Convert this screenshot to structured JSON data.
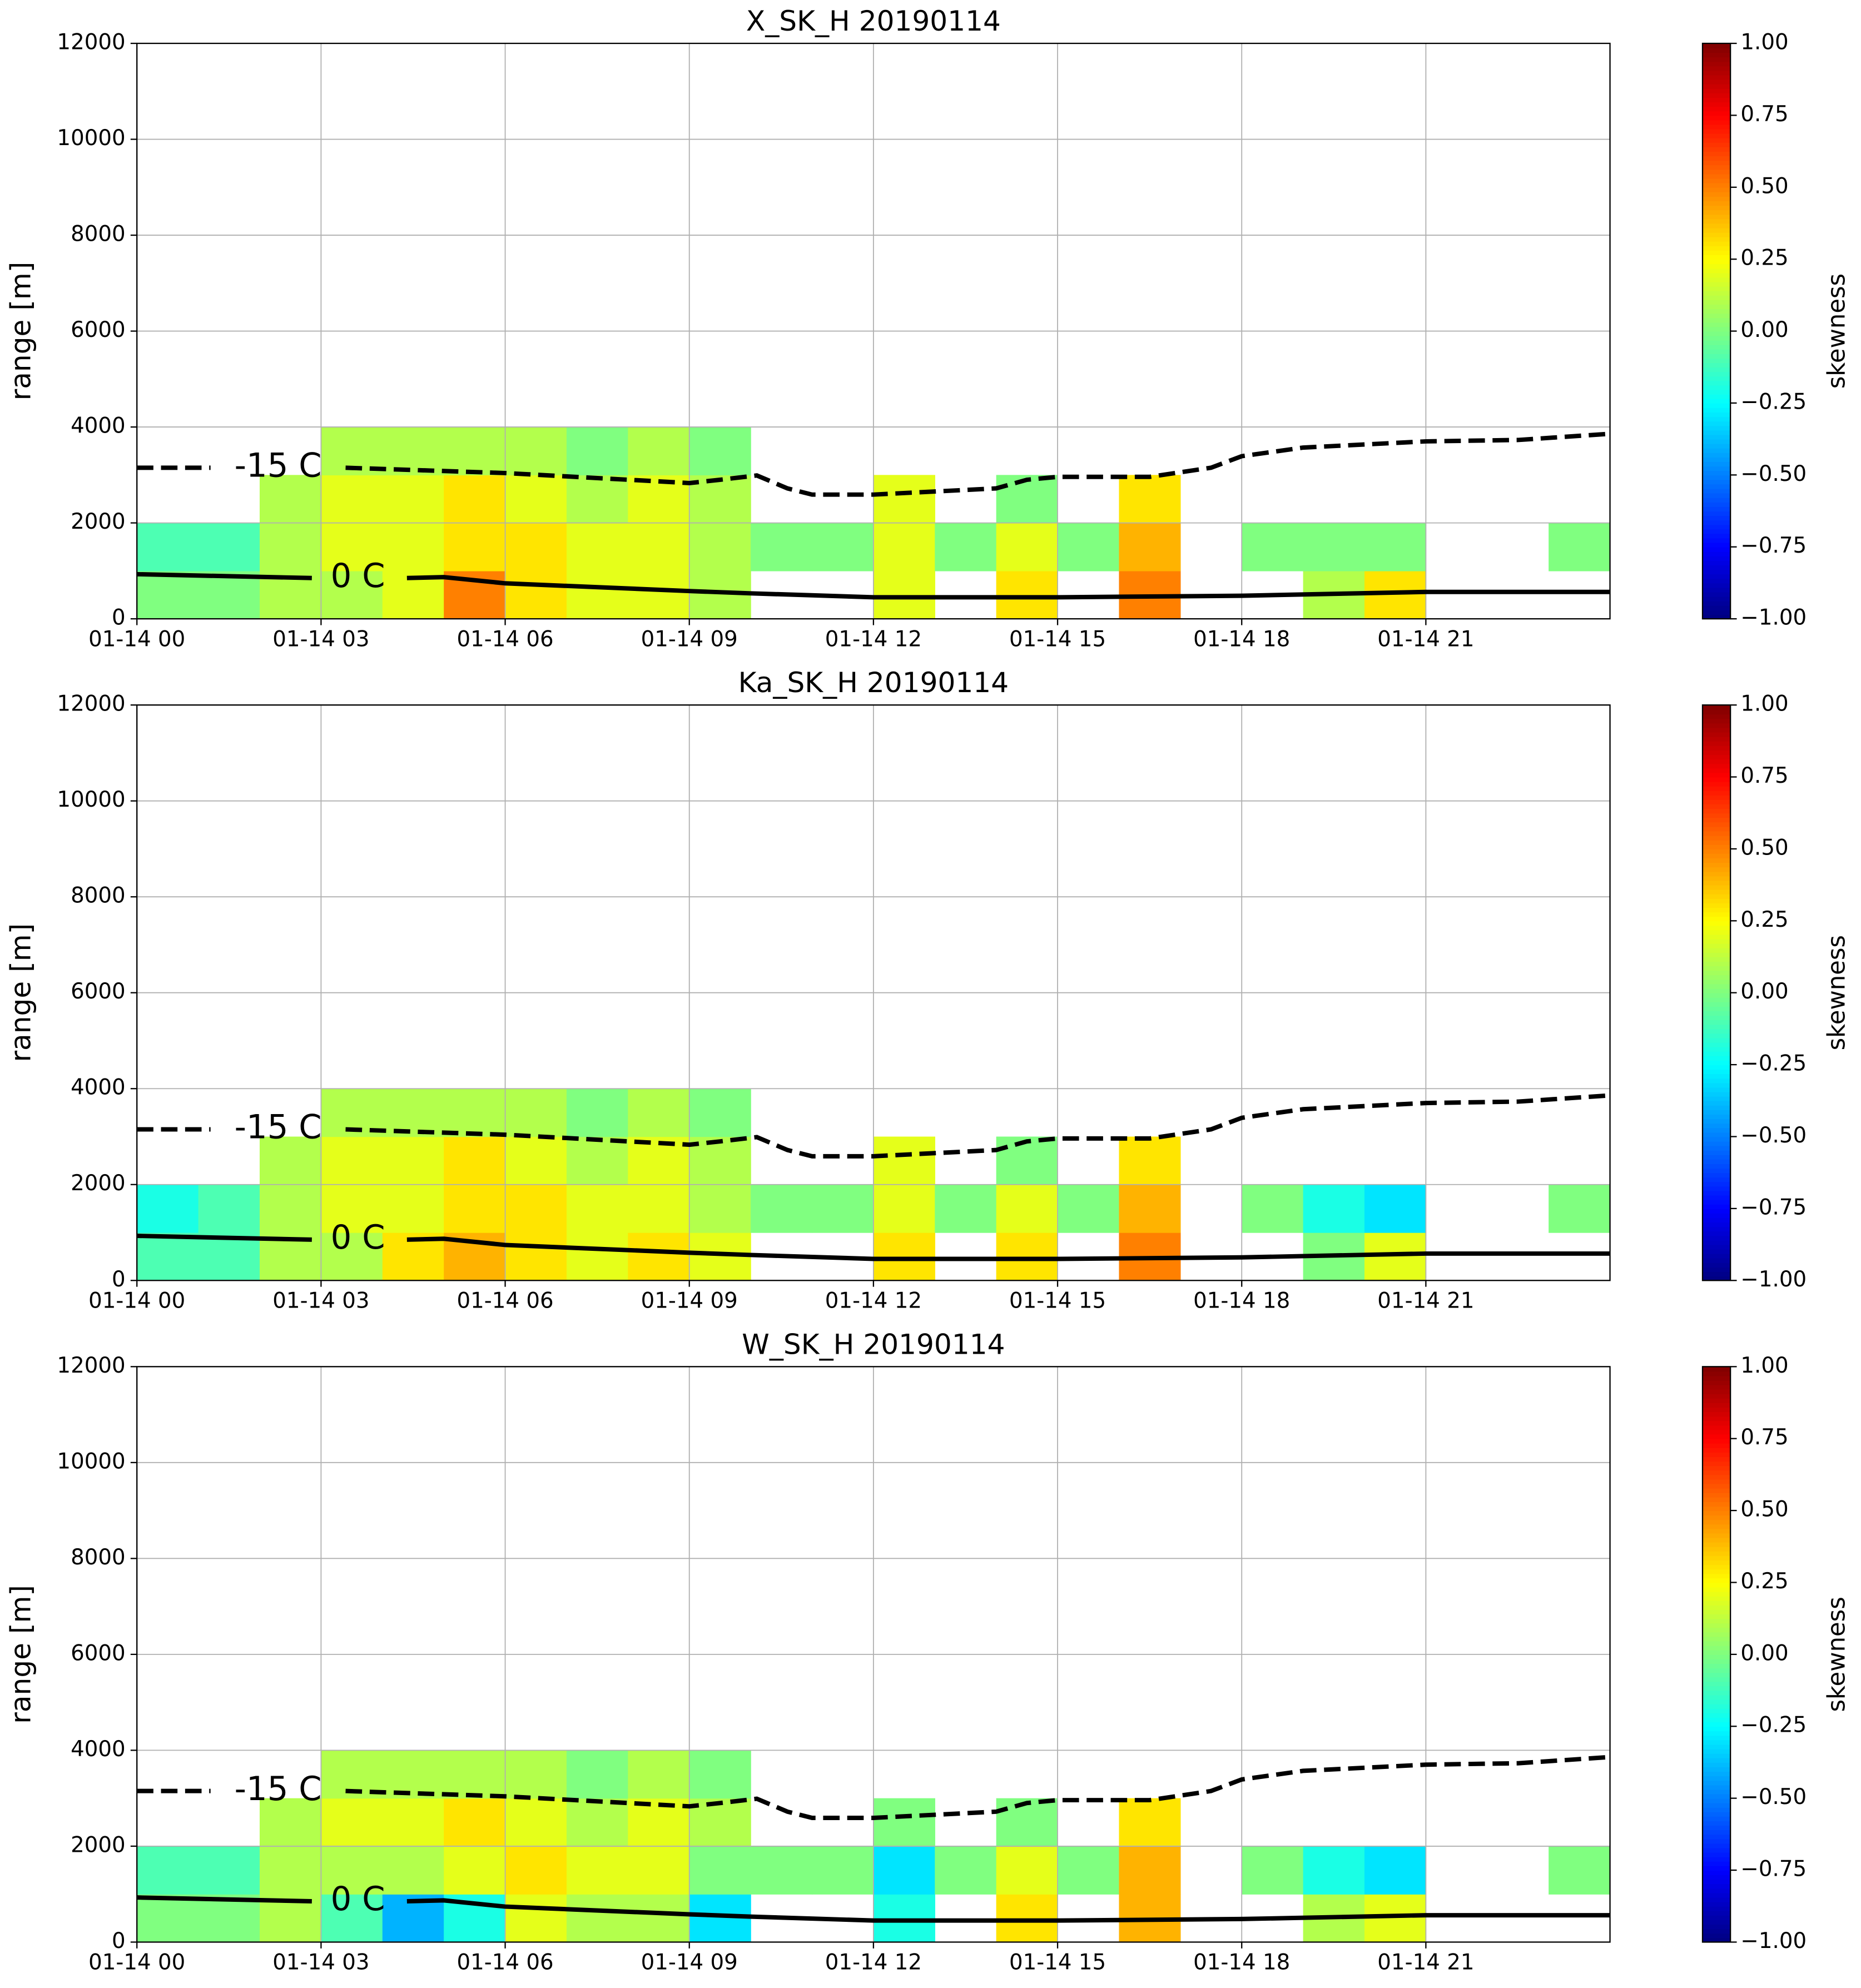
{
  "chart_data": [
    {
      "type": "heatmap",
      "title": "X_SK_H 20190114",
      "ylabel": "range [m]",
      "colorbar_label": "skewness",
      "colormap": "jet",
      "grid": true,
      "xlim": [
        0,
        24
      ],
      "xticks": [
        {
          "value": 0,
          "label": "01-14 00"
        },
        {
          "value": 3,
          "label": "01-14 03"
        },
        {
          "value": 6,
          "label": "01-14 06"
        },
        {
          "value": 9,
          "label": "01-14 09"
        },
        {
          "value": 12,
          "label": "01-14 12"
        },
        {
          "value": 15,
          "label": "01-14 15"
        },
        {
          "value": 18,
          "label": "01-14 18"
        },
        {
          "value": 21,
          "label": "01-14 21"
        }
      ],
      "ylim": [
        0,
        12000
      ],
      "yticks": [
        0,
        2000,
        4000,
        6000,
        8000,
        10000,
        12000
      ],
      "zlim": [
        -1,
        1
      ],
      "zticks": [
        {
          "value": -1,
          "label": "−1.00"
        },
        {
          "value": -0.75,
          "label": "−0.75"
        },
        {
          "value": -0.5,
          "label": "−0.50"
        },
        {
          "value": -0.25,
          "label": "−0.25"
        },
        {
          "value": 0,
          "label": "0.00"
        },
        {
          "value": 0.25,
          "label": "0.25"
        },
        {
          "value": 0.5,
          "label": "0.50"
        },
        {
          "value": 0.75,
          "label": "0.75"
        },
        {
          "value": 1,
          "label": "1.00"
        }
      ],
      "x_bins": [
        0,
        1,
        2,
        3,
        4,
        5,
        6,
        7,
        8,
        9,
        10,
        11,
        12,
        13,
        14,
        15,
        16,
        17,
        18,
        19,
        20,
        21,
        22,
        23,
        24
      ],
      "y_bins": [
        0,
        1000,
        2000,
        3000,
        4000
      ],
      "z": [
        [
          0.0,
          0.0,
          0.1,
          0.1,
          0.2,
          0.5,
          0.3,
          0.2,
          0.2,
          0.1,
          null,
          null,
          0.2,
          null,
          0.3,
          null,
          0.5,
          null,
          null,
          0.1,
          0.3,
          null,
          null,
          null
        ],
        [
          -0.1,
          -0.1,
          0.1,
          0.2,
          0.2,
          0.3,
          0.3,
          0.2,
          0.2,
          0.1,
          0.0,
          0.0,
          0.2,
          0.0,
          0.2,
          0.0,
          0.4,
          null,
          0.0,
          0.0,
          0.0,
          null,
          null,
          0.0
        ],
        [
          null,
          null,
          0.1,
          0.2,
          0.2,
          0.3,
          0.2,
          0.1,
          0.2,
          0.1,
          null,
          null,
          0.2,
          null,
          0.0,
          null,
          0.3,
          null,
          null,
          null,
          null,
          null,
          null,
          null
        ],
        [
          null,
          null,
          null,
          0.1,
          0.1,
          0.1,
          0.1,
          0.0,
          0.1,
          0.0,
          null,
          null,
          null,
          null,
          null,
          null,
          null,
          null,
          null,
          null,
          null,
          null,
          null,
          null
        ]
      ],
      "series": [
        {
          "name": "-15 C",
          "color": "#000000",
          "linestyle": "dashed",
          "x": [
            0,
            1.2,
            2.3,
            3.4,
            6,
            9,
            9.5,
            10.1,
            10.6,
            11,
            12,
            14,
            14.5,
            15,
            16.5,
            17.5,
            18,
            19,
            21,
            22.5,
            24
          ],
          "values": [
            3150,
            3150,
            null,
            3150,
            3040,
            2830,
            2900,
            2990,
            2720,
            2590,
            2590,
            2720,
            2900,
            2960,
            2960,
            3150,
            3390,
            3570,
            3700,
            3730,
            3860
          ]
        },
        {
          "name": "0 C",
          "color": "#000000",
          "linestyle": "solid",
          "x": [
            0,
            2.85,
            3.6,
            4.4,
            5,
            6,
            9,
            10,
            12,
            15,
            18,
            21,
            24
          ],
          "values": [
            930,
            850,
            null,
            850,
            870,
            740,
            580,
            530,
            450,
            450,
            480,
            560,
            560
          ]
        }
      ]
    },
    {
      "type": "heatmap",
      "title": "Ka_SK_H 20190114",
      "ylabel": "range [m]",
      "colorbar_label": "skewness",
      "colormap": "jet",
      "grid": true,
      "xlim": [
        0,
        24
      ],
      "xticks": [
        {
          "value": 0,
          "label": "01-14 00"
        },
        {
          "value": 3,
          "label": "01-14 03"
        },
        {
          "value": 6,
          "label": "01-14 06"
        },
        {
          "value": 9,
          "label": "01-14 09"
        },
        {
          "value": 12,
          "label": "01-14 12"
        },
        {
          "value": 15,
          "label": "01-14 15"
        },
        {
          "value": 18,
          "label": "01-14 18"
        },
        {
          "value": 21,
          "label": "01-14 21"
        }
      ],
      "ylim": [
        0,
        12000
      ],
      "yticks": [
        0,
        2000,
        4000,
        6000,
        8000,
        10000,
        12000
      ],
      "zlim": [
        -1,
        1
      ],
      "zticks": [
        {
          "value": -1,
          "label": "−1.00"
        },
        {
          "value": -0.75,
          "label": "−0.75"
        },
        {
          "value": -0.5,
          "label": "−0.50"
        },
        {
          "value": -0.25,
          "label": "−0.25"
        },
        {
          "value": 0,
          "label": "0.00"
        },
        {
          "value": 0.25,
          "label": "0.25"
        },
        {
          "value": 0.5,
          "label": "0.50"
        },
        {
          "value": 0.75,
          "label": "0.75"
        },
        {
          "value": 1,
          "label": "1.00"
        }
      ],
      "x_bins": [
        0,
        1,
        2,
        3,
        4,
        5,
        6,
        7,
        8,
        9,
        10,
        11,
        12,
        13,
        14,
        15,
        16,
        17,
        18,
        19,
        20,
        21,
        22,
        23,
        24
      ],
      "y_bins": [
        0,
        1000,
        2000,
        3000,
        4000
      ],
      "z": [
        [
          -0.1,
          -0.1,
          0.1,
          0.1,
          0.3,
          0.4,
          0.3,
          0.2,
          0.3,
          0.2,
          null,
          null,
          0.3,
          null,
          0.3,
          null,
          0.5,
          null,
          null,
          0.0,
          0.2,
          null,
          null,
          null
        ],
        [
          -0.2,
          -0.1,
          0.1,
          0.2,
          0.2,
          0.3,
          0.3,
          0.2,
          0.2,
          0.1,
          0.0,
          0.0,
          0.2,
          0.0,
          0.2,
          0.0,
          0.4,
          null,
          0.0,
          -0.2,
          -0.3,
          null,
          null,
          0.0
        ],
        [
          null,
          null,
          0.1,
          0.2,
          0.2,
          0.3,
          0.2,
          0.1,
          0.2,
          0.1,
          null,
          null,
          0.2,
          null,
          0.0,
          null,
          0.3,
          null,
          null,
          null,
          null,
          null,
          null,
          null
        ],
        [
          null,
          null,
          null,
          0.1,
          0.1,
          0.1,
          0.1,
          0.0,
          0.1,
          0.0,
          null,
          null,
          null,
          null,
          null,
          null,
          null,
          null,
          null,
          null,
          null,
          null,
          null,
          null
        ]
      ],
      "series": [
        {
          "name": "-15 C",
          "color": "#000000",
          "linestyle": "dashed",
          "x": [
            0,
            1.2,
            2.3,
            3.4,
            6,
            9,
            9.5,
            10.1,
            10.6,
            11,
            12,
            14,
            14.5,
            15,
            16.5,
            17.5,
            18,
            19,
            21,
            22.5,
            24
          ],
          "values": [
            3150,
            3150,
            null,
            3150,
            3040,
            2830,
            2900,
            2990,
            2720,
            2590,
            2590,
            2720,
            2900,
            2960,
            2960,
            3150,
            3390,
            3570,
            3700,
            3730,
            3860
          ]
        },
        {
          "name": "0 C",
          "color": "#000000",
          "linestyle": "solid",
          "x": [
            0,
            2.85,
            3.6,
            4.4,
            5,
            6,
            9,
            10,
            12,
            15,
            18,
            21,
            24
          ],
          "values": [
            930,
            850,
            null,
            850,
            870,
            740,
            580,
            530,
            450,
            450,
            480,
            560,
            560
          ]
        }
      ]
    },
    {
      "type": "heatmap",
      "title": "W_SK_H 20190114",
      "ylabel": "range [m]",
      "colorbar_label": "skewness",
      "colormap": "jet",
      "grid": true,
      "xlim": [
        0,
        24
      ],
      "xticks": [
        {
          "value": 0,
          "label": "01-14 00"
        },
        {
          "value": 3,
          "label": "01-14 03"
        },
        {
          "value": 6,
          "label": "01-14 06"
        },
        {
          "value": 9,
          "label": "01-14 09"
        },
        {
          "value": 12,
          "label": "01-14 12"
        },
        {
          "value": 15,
          "label": "01-14 15"
        },
        {
          "value": 18,
          "label": "01-14 18"
        },
        {
          "value": 21,
          "label": "01-14 21"
        }
      ],
      "ylim": [
        0,
        12000
      ],
      "yticks": [
        0,
        2000,
        4000,
        6000,
        8000,
        10000,
        12000
      ],
      "zlim": [
        -1,
        1
      ],
      "zticks": [
        {
          "value": -1,
          "label": "−1.00"
        },
        {
          "value": -0.75,
          "label": "−0.75"
        },
        {
          "value": -0.5,
          "label": "−0.50"
        },
        {
          "value": -0.25,
          "label": "−0.25"
        },
        {
          "value": 0,
          "label": "0.00"
        },
        {
          "value": 0.25,
          "label": "0.25"
        },
        {
          "value": 0.5,
          "label": "0.50"
        },
        {
          "value": 0.75,
          "label": "0.75"
        },
        {
          "value": 1,
          "label": "1.00"
        }
      ],
      "x_bins": [
        0,
        1,
        2,
        3,
        4,
        5,
        6,
        7,
        8,
        9,
        10,
        11,
        12,
        13,
        14,
        15,
        16,
        17,
        18,
        19,
        20,
        21,
        22,
        23,
        24
      ],
      "y_bins": [
        0,
        1000,
        2000,
        3000,
        4000
      ],
      "z": [
        [
          0.0,
          0.0,
          0.1,
          -0.1,
          -0.4,
          -0.2,
          0.2,
          0.1,
          0.1,
          -0.3,
          null,
          null,
          -0.2,
          null,
          0.3,
          null,
          0.4,
          null,
          null,
          0.1,
          0.2,
          null,
          null,
          null
        ],
        [
          -0.1,
          -0.1,
          0.1,
          0.1,
          0.1,
          0.2,
          0.3,
          0.2,
          0.2,
          0.0,
          0.0,
          0.0,
          -0.3,
          0.0,
          0.2,
          0.0,
          0.4,
          null,
          0.0,
          -0.2,
          -0.3,
          null,
          null,
          0.0
        ],
        [
          null,
          null,
          0.1,
          0.2,
          0.2,
          0.3,
          0.2,
          0.1,
          0.2,
          0.1,
          null,
          null,
          0.0,
          null,
          0.0,
          null,
          0.3,
          null,
          null,
          null,
          null,
          null,
          null,
          null
        ],
        [
          null,
          null,
          null,
          0.1,
          0.1,
          0.1,
          0.1,
          0.0,
          0.1,
          0.0,
          null,
          null,
          null,
          null,
          null,
          null,
          null,
          null,
          null,
          null,
          null,
          null,
          null,
          null
        ]
      ],
      "series": [
        {
          "name": "-15 C",
          "color": "#000000",
          "linestyle": "dashed",
          "x": [
            0,
            1.2,
            2.3,
            3.4,
            6,
            9,
            9.5,
            10.1,
            10.6,
            11,
            12,
            14,
            14.5,
            15,
            16.5,
            17.5,
            18,
            19,
            21,
            22.5,
            24
          ],
          "values": [
            3150,
            3150,
            null,
            3150,
            3040,
            2830,
            2900,
            2990,
            2720,
            2590,
            2590,
            2720,
            2900,
            2960,
            2960,
            3150,
            3390,
            3570,
            3700,
            3730,
            3860
          ]
        },
        {
          "name": "0 C",
          "color": "#000000",
          "linestyle": "solid",
          "x": [
            0,
            2.85,
            3.6,
            4.4,
            5,
            6,
            9,
            10,
            12,
            15,
            18,
            21,
            24
          ],
          "values": [
            930,
            850,
            null,
            850,
            870,
            740,
            580,
            530,
            450,
            450,
            480,
            560,
            560
          ]
        }
      ]
    }
  ]
}
